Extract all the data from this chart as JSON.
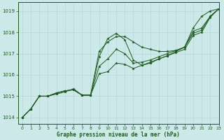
{
  "title": "Graphe pression niveau de la mer (hPa)",
  "bg_color": "#cce8e8",
  "grid_color": "#b8d8d8",
  "line_color": "#1a5c1a",
  "xlim": [
    -0.5,
    23
  ],
  "ylim": [
    1013.7,
    1019.4
  ],
  "yticks": [
    1014,
    1015,
    1016,
    1017,
    1018,
    1019
  ],
  "xticks": [
    0,
    1,
    2,
    3,
    4,
    5,
    6,
    7,
    8,
    9,
    10,
    11,
    12,
    13,
    14,
    15,
    16,
    17,
    18,
    19,
    20,
    21,
    22,
    23
  ],
  "series": [
    {
      "x": [
        0,
        1,
        2,
        3,
        4,
        5,
        6,
        7,
        8,
        9,
        10,
        11,
        12,
        13,
        14,
        15,
        16,
        17,
        18,
        19,
        20,
        21,
        22,
        23
      ],
      "y": [
        1014.0,
        1014.4,
        1015.0,
        1015.0,
        1015.15,
        1015.25,
        1015.3,
        1015.05,
        1015.05,
        1016.05,
        1016.15,
        1016.55,
        1016.5,
        1016.3,
        1016.45,
        1016.6,
        1016.75,
        1016.9,
        1017.05,
        1017.2,
        1017.85,
        1018.0,
        1018.7,
        1019.1
      ]
    },
    {
      "x": [
        0,
        1,
        2,
        3,
        4,
        5,
        6,
        7,
        8,
        9,
        10,
        11,
        12,
        13,
        14,
        15,
        16,
        17,
        18,
        19,
        20,
        21,
        22,
        23
      ],
      "y": [
        1014.0,
        1014.4,
        1015.0,
        1015.0,
        1015.15,
        1015.25,
        1015.3,
        1015.05,
        1015.05,
        1016.4,
        1016.75,
        1017.2,
        1017.0,
        1016.55,
        1016.6,
        1016.7,
        1016.85,
        1017.0,
        1017.15,
        1017.3,
        1017.95,
        1018.1,
        1018.75,
        1019.1
      ]
    },
    {
      "x": [
        0,
        1,
        2,
        3,
        4,
        5,
        6,
        7,
        8,
        9,
        10,
        11,
        12,
        13,
        14,
        15,
        16,
        17,
        18,
        19,
        20,
        21,
        22,
        23
      ],
      "y": [
        1014.0,
        1014.4,
        1015.0,
        1015.0,
        1015.15,
        1015.25,
        1015.3,
        1015.05,
        1015.05,
        1016.85,
        1017.7,
        1017.95,
        1017.65,
        1016.7,
        1016.45,
        1016.55,
        1016.75,
        1016.9,
        1017.1,
        1017.3,
        1018.05,
        1018.2,
        1018.75,
        1019.1
      ]
    },
    {
      "x": [
        0,
        1,
        2,
        3,
        4,
        5,
        6,
        7,
        8,
        9,
        10,
        11,
        12,
        13,
        14,
        15,
        16,
        17,
        18,
        19,
        20,
        21,
        22,
        23
      ],
      "y": [
        1014.0,
        1014.4,
        1015.0,
        1015.0,
        1015.1,
        1015.2,
        1015.35,
        1015.05,
        1015.05,
        1017.1,
        1017.55,
        1017.8,
        1017.8,
        1017.55,
        1017.3,
        1017.2,
        1017.1,
        1017.1,
        1017.15,
        1017.3,
        1018.2,
        1018.75,
        1019.0,
        1019.1
      ]
    }
  ]
}
